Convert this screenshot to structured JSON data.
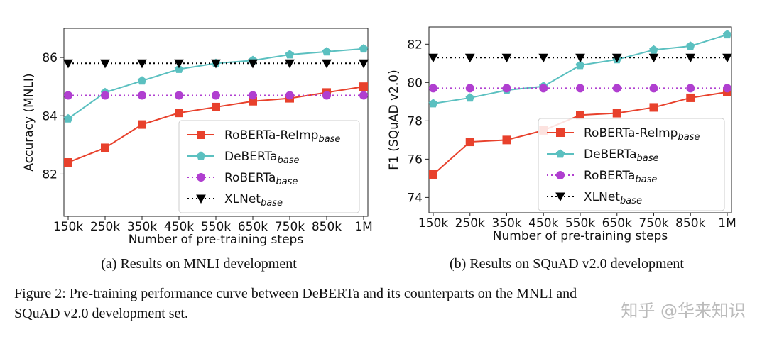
{
  "chart_data": [
    {
      "type": "line",
      "y_label": "Accuracy (MNLI)",
      "x_label": "Number of pre-training steps",
      "categories": [
        "150k",
        "250k",
        "350k",
        "450k",
        "550k",
        "650k",
        "750k",
        "850k",
        "1M"
      ],
      "ylim": [
        80.55,
        87
      ],
      "yticks": [
        82,
        84,
        86
      ],
      "grid": false,
      "legend": "lower right",
      "series": [
        {
          "name": "RoBERTa-ReImp",
          "subscript": "base",
          "color": "#e8412c",
          "marker": "square",
          "linestyle": "solid",
          "values": [
            82.4,
            82.9,
            83.7,
            84.1,
            84.3,
            84.5,
            84.6,
            84.8,
            85.0
          ]
        },
        {
          "name": "DeBERTa",
          "subscript": "base",
          "color": "#5bc0c0",
          "marker": "pentagon",
          "linestyle": "solid",
          "values": [
            83.9,
            84.8,
            85.2,
            85.6,
            85.8,
            85.9,
            86.1,
            86.2,
            86.3
          ]
        },
        {
          "name": "RoBERTa",
          "subscript": "base",
          "color": "#b03fd0",
          "marker": "circle",
          "linestyle": "dotted",
          "values": [
            84.7,
            84.7,
            84.7,
            84.7,
            84.7,
            84.7,
            84.7,
            84.7,
            84.7
          ]
        },
        {
          "name": "XLNet",
          "subscript": "base",
          "color": "#000000",
          "marker": "triangle-down",
          "linestyle": "dotted",
          "values": [
            85.8,
            85.8,
            85.8,
            85.8,
            85.8,
            85.8,
            85.8,
            85.8,
            85.8
          ]
        }
      ],
      "caption": "(a) Results on MNLI development"
    },
    {
      "type": "line",
      "y_label": "F1 (SQuAD v2.0)",
      "x_label": "Number of pre-training steps",
      "categories": [
        "150k",
        "250k",
        "350k",
        "450k",
        "550k",
        "650k",
        "750k",
        "850k",
        "1M"
      ],
      "ylim": [
        73.2,
        82.9
      ],
      "yticks": [
        74,
        76,
        78,
        80,
        82
      ],
      "grid": false,
      "legend": "lower right",
      "series": [
        {
          "name": "RoBERTa-ReImp",
          "subscript": "base",
          "color": "#e8412c",
          "marker": "square",
          "linestyle": "solid",
          "values": [
            75.2,
            76.9,
            77.0,
            77.5,
            78.3,
            78.4,
            78.7,
            79.2,
            79.5
          ]
        },
        {
          "name": "DeBERTa",
          "subscript": "base",
          "color": "#5bc0c0",
          "marker": "pentagon",
          "linestyle": "solid",
          "values": [
            78.9,
            79.2,
            79.6,
            79.8,
            80.9,
            81.2,
            81.7,
            81.9,
            82.5
          ]
        },
        {
          "name": "RoBERTa",
          "subscript": "base",
          "color": "#b03fd0",
          "marker": "circle",
          "linestyle": "dotted",
          "values": [
            79.7,
            79.7,
            79.7,
            79.7,
            79.7,
            79.7,
            79.7,
            79.7,
            79.7
          ]
        },
        {
          "name": "XLNet",
          "subscript": "base",
          "color": "#000000",
          "marker": "triangle-down",
          "linestyle": "dotted",
          "values": [
            81.3,
            81.3,
            81.3,
            81.3,
            81.3,
            81.3,
            81.3,
            81.3,
            81.3
          ]
        }
      ],
      "caption": "(b) Results on SQuAD v2.0 development"
    }
  ],
  "figure_caption": [
    "Figure 2: Pre-training performance curve between DeBERTa and its counterparts on the MNLI and",
    "SQuAD v2.0 development set."
  ],
  "watermark": "知乎 @华来知识"
}
